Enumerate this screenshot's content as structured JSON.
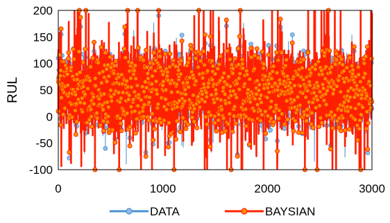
{
  "chart_data": {
    "type": "line",
    "title": "",
    "xlabel": "",
    "ylabel": "RUL",
    "xlim": [
      0,
      3000
    ],
    "ylim": [
      -100,
      200
    ],
    "x_ticks": [
      "0",
      "1000",
      "2000",
      "3000"
    ],
    "y_ticks": [
      "-100",
      "-50",
      "0",
      "50",
      "100",
      "150",
      "200"
    ],
    "grid": false,
    "legend_position": "bottom",
    "n_points": 3000,
    "series": [
      {
        "name": "DATA",
        "color": "#4a90d0",
        "marker": "circle",
        "values_summary": "dense oscillation between about -90 and 195 RUL over x = 0 to 3000, centered near 50"
      },
      {
        "name": "BAYSIAN",
        "color": "#ff2000",
        "marker_fill": "#ff8c00",
        "marker": "circle",
        "values_summary": "closely tracks DATA, dense oscillation between about -100 and 200 RUL over x = 0 to 3000"
      }
    ],
    "sampled_points": [
      {
        "x": 0,
        "data": 110,
        "baysian": 10
      },
      {
        "x": 100,
        "data": -50,
        "baysian": 180
      },
      {
        "x": 220,
        "data": -95,
        "baysian": -95
      },
      {
        "x": 290,
        "data": 185,
        "baysian": 195
      },
      {
        "x": 450,
        "data": -60,
        "baysian": 120
      },
      {
        "x": 650,
        "data": -90,
        "baysian": 175
      },
      {
        "x": 960,
        "data": 190,
        "baysian": 200
      },
      {
        "x": 1180,
        "data": -55,
        "baysian": 90
      },
      {
        "x": 1400,
        "data": -95,
        "baysian": -100
      },
      {
        "x": 1480,
        "data": -50,
        "baysian": 200
      },
      {
        "x": 1760,
        "data": -90,
        "baysian": -100
      },
      {
        "x": 2100,
        "data": -90,
        "baysian": 200
      },
      {
        "x": 2450,
        "data": -85,
        "baysian": 175
      },
      {
        "x": 2700,
        "data": 195,
        "baysian": 200
      },
      {
        "x": 2880,
        "data": -95,
        "baysian": -100
      },
      {
        "x": 3000,
        "data": 190,
        "baysian": 195
      }
    ]
  }
}
